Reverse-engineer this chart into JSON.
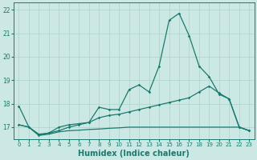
{
  "x": [
    0,
    1,
    2,
    3,
    4,
    5,
    6,
    7,
    8,
    9,
    10,
    11,
    12,
    13,
    14,
    15,
    16,
    17,
    18,
    19,
    20,
    21,
    22,
    23
  ],
  "line1": [
    17.9,
    17.0,
    16.7,
    16.75,
    17.0,
    17.1,
    17.15,
    17.2,
    17.85,
    17.75,
    17.75,
    18.6,
    18.8,
    18.5,
    19.6,
    21.55,
    21.85,
    20.9,
    19.6,
    19.15,
    18.4,
    18.2,
    17.0,
    16.85
  ],
  "line2": [
    17.1,
    17.0,
    16.65,
    16.75,
    16.85,
    17.0,
    17.1,
    17.2,
    17.4,
    17.5,
    17.55,
    17.65,
    17.75,
    17.85,
    17.95,
    18.05,
    18.15,
    18.25,
    18.5,
    18.75,
    18.45,
    18.2,
    17.0,
    16.85
  ],
  "line3": [
    17.1,
    17.0,
    16.65,
    16.7,
    16.8,
    16.85,
    16.87,
    16.9,
    16.92,
    16.95,
    16.97,
    17.0,
    17.0,
    17.0,
    17.0,
    17.0,
    17.0,
    17.0,
    17.0,
    17.0,
    17.0,
    17.0,
    17.0,
    16.85
  ],
  "color": "#1a7a6e",
  "bg_color": "#cce8e4",
  "grid_color": "#afd0cc",
  "xlabel": "Humidex (Indice chaleur)",
  "ylim": [
    16.5,
    22.3
  ],
  "xlim": [
    -0.5,
    23.5
  ],
  "yticks": [
    17,
    18,
    19,
    20,
    21,
    22
  ],
  "xtick_labels": [
    "0",
    "1",
    "2",
    "3",
    "4",
    "5",
    "6",
    "7",
    "8",
    "9",
    "10",
    "11",
    "12",
    "13",
    "14",
    "15",
    "16",
    "17",
    "18",
    "19",
    "20",
    "21",
    "22",
    "23"
  ],
  "label_fontsize": 7
}
